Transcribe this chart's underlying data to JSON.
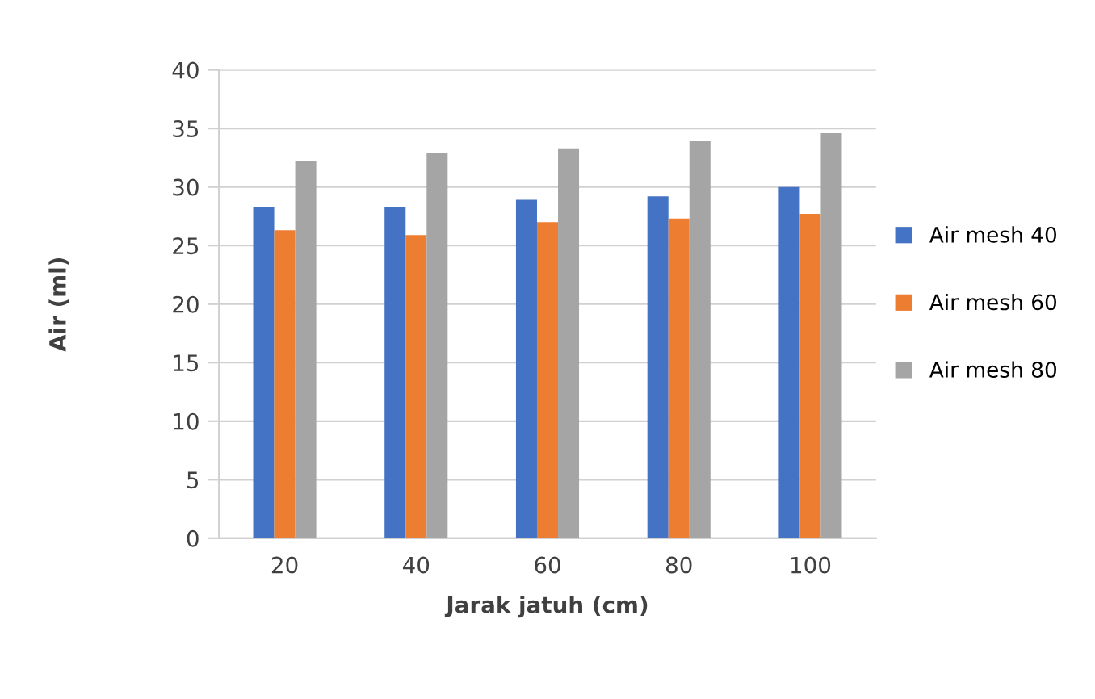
{
  "chart_data": {
    "type": "bar",
    "xlabel": "Jarak jatuh (cm)",
    "ylabel": "Air (ml)",
    "categories": [
      "20",
      "40",
      "60",
      "80",
      "100"
    ],
    "series": [
      {
        "name": "Air mesh 40",
        "color": "#4472c4",
        "values": [
          28.3,
          28.3,
          28.9,
          29.2,
          30.0
        ]
      },
      {
        "name": "Air mesh 60",
        "color": "#ed7d31",
        "values": [
          26.3,
          25.9,
          27.0,
          27.3,
          27.7
        ]
      },
      {
        "name": "Air mesh 80",
        "color": "#a5a5a5",
        "values": [
          32.2,
          32.9,
          33.3,
          33.9,
          34.6
        ]
      }
    ],
    "ylim": [
      0,
      40
    ],
    "yticks": [
      0,
      5,
      10,
      15,
      20,
      25,
      30,
      35,
      40
    ],
    "grid": "y",
    "legend": "right"
  }
}
